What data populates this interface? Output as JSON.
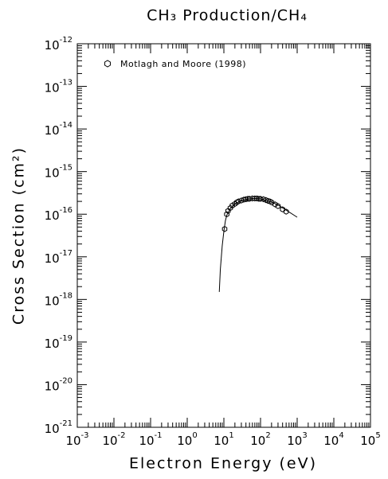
{
  "chart_data": {
    "type": "scatter",
    "title": "CH₃ Production/CH₄",
    "x_label": "Electron Energy (eV)",
    "y_label": "Cross Section (cm²)",
    "xscale": "log",
    "yscale": "log",
    "xlim": [
      0.001,
      100000
    ],
    "ylim": [
      1e-21,
      1e-12
    ],
    "xticks": [
      {
        "value": 0.001,
        "label": "10^-3"
      },
      {
        "value": 0.01,
        "label": "10^-2"
      },
      {
        "value": 0.1,
        "label": "10^-1"
      },
      {
        "value": 1,
        "label": "10^0"
      },
      {
        "value": 10,
        "label": "10^1"
      },
      {
        "value": 100,
        "label": "10^2"
      },
      {
        "value": 1000,
        "label": "10^3"
      },
      {
        "value": 10000,
        "label": "10^4"
      },
      {
        "value": 100000,
        "label": "10^5"
      }
    ],
    "yticks": [
      {
        "value": 1e-21,
        "label": "10^-21"
      },
      {
        "value": 1e-20,
        "label": "10^-20"
      },
      {
        "value": 1e-19,
        "label": "10^-19"
      },
      {
        "value": 1e-18,
        "label": "10^-18"
      },
      {
        "value": 1e-17,
        "label": "10^-17"
      },
      {
        "value": 1e-16,
        "label": "10^-16"
      },
      {
        "value": 1e-15,
        "label": "10^-15"
      },
      {
        "value": 1e-14,
        "label": "10^-14"
      },
      {
        "value": 1e-13,
        "label": "10^-13"
      },
      {
        "value": 1e-12,
        "label": "10^-12"
      }
    ],
    "legend": "upper left",
    "series": [
      {
        "name": "Motlagh and Moore (1998)",
        "marker": "hexagon",
        "color": "#000000",
        "x": [
          10.5,
          12,
          13,
          15,
          17,
          20,
          22.5,
          25,
          30,
          35,
          40,
          45,
          50,
          60,
          70,
          80,
          90,
          100,
          120,
          140,
          160,
          180,
          200,
          250,
          300,
          400,
          500
        ],
        "values": [
          4.5e-17,
          1e-16,
          1.2e-16,
          1.4e-16,
          1.6e-16,
          1.75e-16,
          1.9e-16,
          2e-16,
          2.1e-16,
          2.2e-16,
          2.25e-16,
          2.3e-16,
          2.3e-16,
          2.35e-16,
          2.35e-16,
          2.35e-16,
          2.3e-16,
          2.3e-16,
          2.25e-16,
          2.15e-16,
          2.05e-16,
          2e-16,
          1.9e-16,
          1.7e-16,
          1.55e-16,
          1.3e-16,
          1.15e-16
        ]
      },
      {
        "marker": "line",
        "color": "#000000",
        "x": [
          7.5,
          8,
          9,
          10,
          11,
          12,
          15,
          20,
          30,
          50,
          70,
          100,
          200,
          300,
          500,
          1000
        ],
        "values": [
          1.5e-18,
          5e-18,
          1.8e-17,
          4e-17,
          7e-17,
          9.5e-17,
          1.35e-16,
          1.75e-16,
          2.1e-16,
          2.3e-16,
          2.35e-16,
          2.3e-16,
          1.95e-16,
          1.65e-16,
          1.25e-16,
          8.5e-17
        ]
      }
    ]
  }
}
